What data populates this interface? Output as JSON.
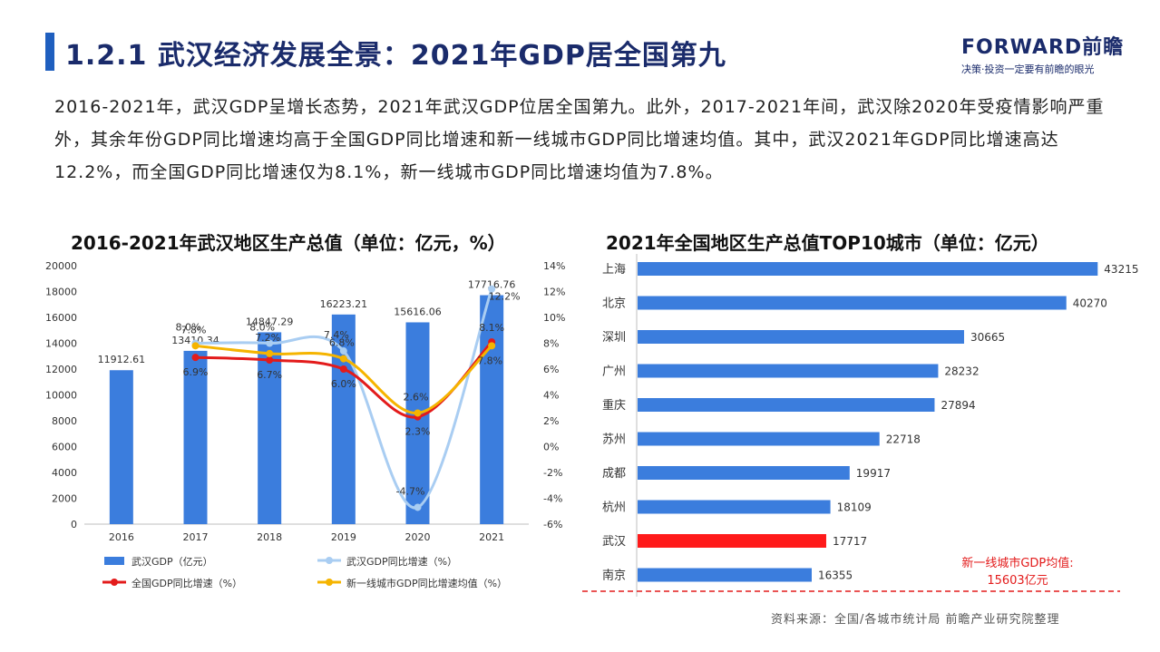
{
  "header": {
    "title": "1.2.1 武汉经济发展全景：2021年GDP居全国第九",
    "logo_main": "FORWARD前瞻",
    "logo_sub": "决策·投资一定要有前瞻的眼光"
  },
  "intro": "2016-2021年，武汉GDP呈增长态势，2021年武汉GDP位居全国第九。此外，2017-2021年间，武汉除2020年受疫情影响严重外，其余年份GDP同比增速均高于全国GDP同比增速和新一线城市GDP同比增速均值。其中，武汉2021年GDP同比增速高达12.2%，而全国GDP同比增速仅为8.1%，新一线城市GDP同比增速均值为7.8%。",
  "chart_data": [
    {
      "type": "bar",
      "title": "2016-2021年武汉地区生产总值（单位：亿元，%）",
      "categories": [
        "2016",
        "2017",
        "2018",
        "2019",
        "2020",
        "2021"
      ],
      "ylim": [
        0,
        20000
      ],
      "y_ticks": [
        "0",
        "2000",
        "4000",
        "6000",
        "8000",
        "10000",
        "12000",
        "14000",
        "16000",
        "18000",
        "20000"
      ],
      "y2lim": [
        -6,
        14
      ],
      "y2_ticks": [
        "-6%",
        "-4%",
        "-2%",
        "0%",
        "2%",
        "4%",
        "6%",
        "8%",
        "10%",
        "12%",
        "14%"
      ],
      "series": [
        {
          "name": "武汉GDP（亿元）",
          "type": "bar",
          "axis": "left",
          "color": "#3b7ddd",
          "values": [
            11912.61,
            13410.34,
            14847.29,
            16223.21,
            15616.06,
            17716.76
          ],
          "labels": [
            "11912.61",
            "13410.34",
            "14847.29",
            "16223.21",
            "15616.06",
            "17716.76"
          ]
        },
        {
          "name": "武汉GDP同比增速（%）",
          "type": "line",
          "axis": "right",
          "color": "#a9cdf2",
          "values": [
            null,
            8.0,
            8.0,
            7.4,
            -4.7,
            12.2
          ],
          "labels": [
            "",
            "8.0%",
            "8.0%",
            "7.4%",
            "-4.7%",
            "12.2%"
          ]
        },
        {
          "name": "全国GDP同比增速（%）",
          "type": "line",
          "axis": "right",
          "color": "#e31b1b",
          "values": [
            null,
            6.9,
            6.7,
            6.0,
            2.3,
            8.1
          ],
          "labels": [
            "",
            "6.9%",
            "6.7%",
            "6.0%",
            "2.3%",
            "8.1%"
          ]
        },
        {
          "name": "新一线城市GDP同比增速均值（%）",
          "type": "line",
          "axis": "right",
          "color": "#f5b400",
          "values": [
            null,
            7.8,
            7.2,
            6.8,
            2.6,
            7.8
          ],
          "labels": [
            "",
            "7.8%",
            "7.2%",
            "6.8%",
            "2.6%",
            "7.8%"
          ]
        }
      ],
      "legend": "bottom"
    },
    {
      "type": "bar",
      "orientation": "horizontal",
      "title": "2021年全国地区生产总值TOP10城市（单位：亿元）",
      "categories": [
        "上海",
        "北京",
        "深圳",
        "广州",
        "重庆",
        "苏州",
        "成都",
        "杭州",
        "武汉",
        "南京"
      ],
      "values": [
        43215,
        40270,
        30665,
        28232,
        27894,
        22718,
        19917,
        18109,
        17717,
        16355
      ],
      "labels": [
        "43215",
        "40270",
        "30665",
        "28232",
        "27894",
        "22718",
        "19917",
        "18109",
        "17717",
        "16355"
      ],
      "colors": {
        "default": "#3b7ddd",
        "highlight": "#ff1a1a"
      },
      "highlight_category": "武汉",
      "xlim": [
        0,
        46000
      ],
      "annotation": {
        "line1": "新一线城市GDP均值:",
        "line2": "15603亿元",
        "color": "#e31b1b"
      }
    }
  ],
  "source": "资料来源：全国/各城市统计局 前瞻产业研究院整理"
}
